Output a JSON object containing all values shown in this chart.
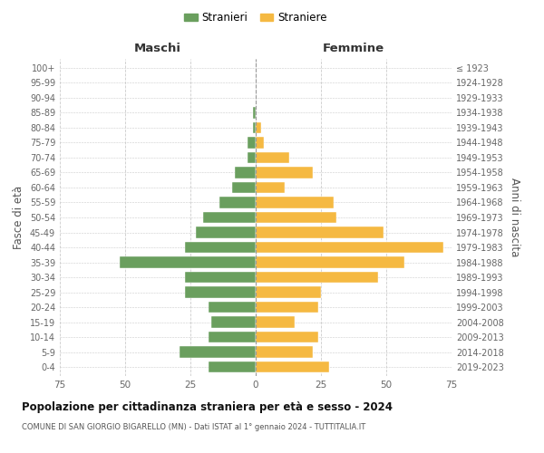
{
  "age_groups": [
    "0-4",
    "5-9",
    "10-14",
    "15-19",
    "20-24",
    "25-29",
    "30-34",
    "35-39",
    "40-44",
    "45-49",
    "50-54",
    "55-59",
    "60-64",
    "65-69",
    "70-74",
    "75-79",
    "80-84",
    "85-89",
    "90-94",
    "95-99",
    "100+"
  ],
  "birth_years": [
    "2019-2023",
    "2014-2018",
    "2009-2013",
    "2004-2008",
    "1999-2003",
    "1994-1998",
    "1989-1993",
    "1984-1988",
    "1979-1983",
    "1974-1978",
    "1969-1973",
    "1964-1968",
    "1959-1963",
    "1954-1958",
    "1949-1953",
    "1944-1948",
    "1939-1943",
    "1934-1938",
    "1929-1933",
    "1924-1928",
    "≤ 1923"
  ],
  "maschi": [
    18,
    29,
    18,
    17,
    18,
    27,
    27,
    52,
    27,
    23,
    20,
    14,
    9,
    8,
    3,
    3,
    1,
    1,
    0,
    0,
    0
  ],
  "femmine": [
    28,
    22,
    24,
    15,
    24,
    25,
    47,
    57,
    72,
    49,
    31,
    30,
    11,
    22,
    13,
    3,
    2,
    0,
    0,
    0,
    0
  ],
  "color_maschi": "#6a9f5e",
  "color_femmine": "#f5b942",
  "title": "Popolazione per cittadinanza straniera per età e sesso - 2024",
  "subtitle": "COMUNE DI SAN GIORGIO BIGARELLO (MN) - Dati ISTAT al 1° gennaio 2024 - TUTTITALIA.IT",
  "xlabel_left": "Maschi",
  "xlabel_right": "Femmine",
  "ylabel_left": "Fasce di età",
  "ylabel_right": "Anni di nascita",
  "legend_maschi": "Stranieri",
  "legend_femmine": "Straniere",
  "xlim": 75,
  "background_color": "#ffffff",
  "grid_color": "#cccccc"
}
